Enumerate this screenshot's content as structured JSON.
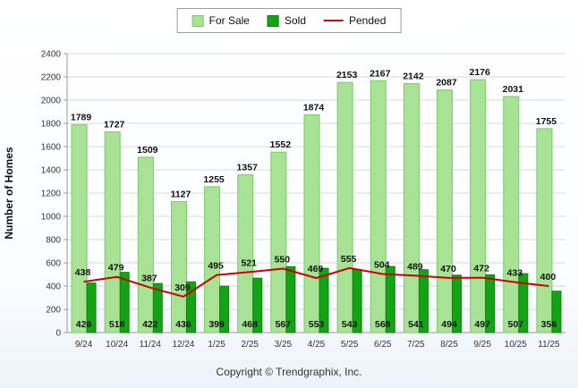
{
  "legend": {
    "for_sale": "For Sale",
    "sold": "Sold",
    "pended": "Pended"
  },
  "colors": {
    "for_sale_fill": "#a7e295",
    "for_sale_border": "#7cc968",
    "sold_fill": "#14a314",
    "sold_border": "#0d820d",
    "pended_line": "#cc0000",
    "grid": "#d8d8d8",
    "axis": "#999999",
    "label_text": "#111111",
    "tick_text": "#333333"
  },
  "y_axis": {
    "title": "Number of Homes",
    "min": 0,
    "max": 2400,
    "step": 200,
    "ticks": [
      0,
      200,
      400,
      600,
      800,
      1000,
      1200,
      1400,
      1600,
      1800,
      2000,
      2200,
      2400
    ]
  },
  "footer": {
    "copyright": "Copyright © Trendgraphix, Inc."
  },
  "chart_data": {
    "type": "bar",
    "title": "",
    "xlabel": "",
    "ylabel": "Number of Homes",
    "ylim": [
      0,
      2400
    ],
    "grid": true,
    "legend_position": "top",
    "categories": [
      "9/24",
      "10/24",
      "11/24",
      "12/24",
      "1/25",
      "2/25",
      "3/25",
      "4/25",
      "5/25",
      "6/25",
      "7/25",
      "8/25",
      "9/25",
      "10/25",
      "11/25"
    ],
    "series": [
      {
        "name": "For Sale",
        "render": "bar",
        "values": [
          1789,
          1727,
          1509,
          1127,
          1255,
          1357,
          1552,
          1874,
          2153,
          2167,
          2142,
          2087,
          2176,
          2031,
          1755
        ]
      },
      {
        "name": "Sold",
        "render": "bar",
        "values": [
          426,
          518,
          422,
          436,
          399,
          468,
          567,
          553,
          543,
          568,
          541,
          494,
          497,
          507,
          356
        ]
      },
      {
        "name": "Pended",
        "render": "line",
        "values": [
          438,
          479,
          387,
          309,
          495,
          521,
          550,
          469,
          555,
          504,
          489,
          470,
          472,
          433,
          400
        ]
      }
    ]
  }
}
